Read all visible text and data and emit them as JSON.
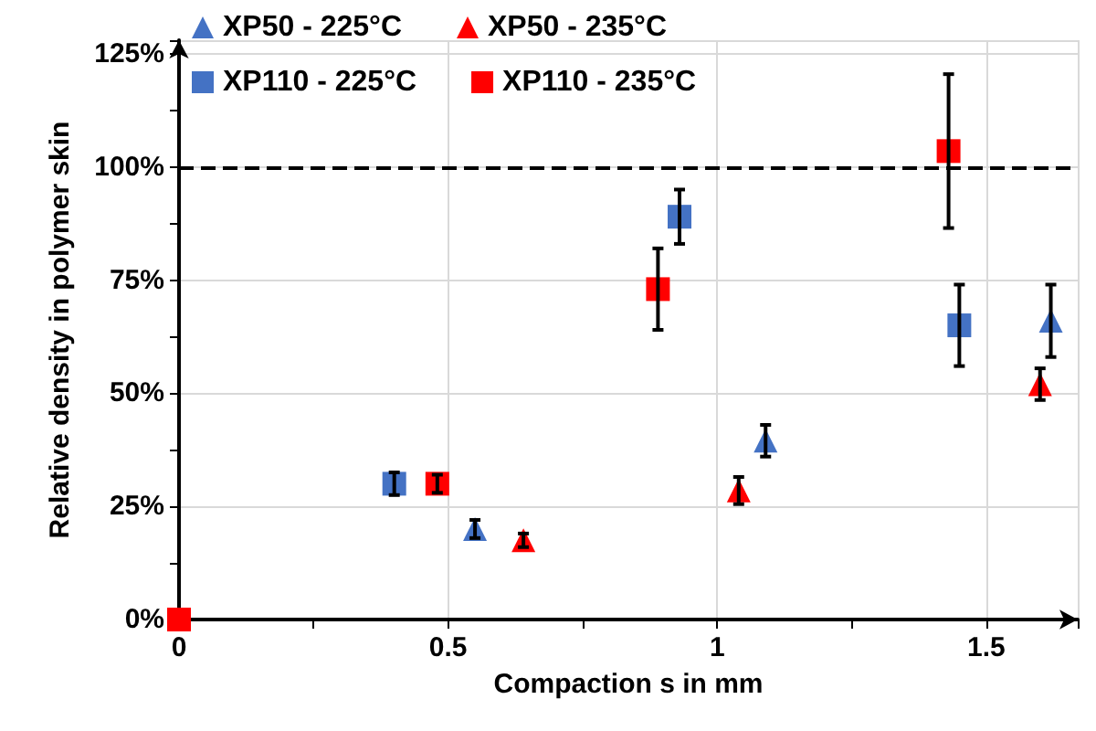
{
  "chart_data": {
    "type": "scatter",
    "xlabel": "Compaction s in mm",
    "ylabel": "Relative density in polymer skin",
    "xlim": [
      0,
      1.67
    ],
    "ylim": [
      0,
      128
    ],
    "xticks": [
      0,
      0.5,
      1,
      1.5
    ],
    "yticks": [
      {
        "value": 0,
        "label": "0%"
      },
      {
        "value": 25,
        "label": "25%"
      },
      {
        "value": 50,
        "label": "50%"
      },
      {
        "value": 75,
        "label": "75%"
      },
      {
        "value": 100,
        "label": "100%"
      },
      {
        "value": 125,
        "label": "125%"
      }
    ],
    "grid": true,
    "legend": "top left",
    "ref_lines": [
      {
        "axis": "y",
        "value": 100,
        "color": "#000000",
        "line_style": "dashed"
      }
    ],
    "series": [
      {
        "name": "XP50 - 225°C",
        "color": "#4472c4",
        "marker": "triangle",
        "x": [
          0.55,
          1.09,
          1.62
        ],
        "values": [
          20,
          39.5,
          66
        ],
        "errors": [
          2,
          3.5,
          8
        ]
      },
      {
        "name": "XP50 - 235°C",
        "color": "#ff0000",
        "marker": "triangle",
        "x": [
          0.64,
          1.04,
          1.6
        ],
        "values": [
          17.5,
          28.5,
          52
        ],
        "errors": [
          1.5,
          3,
          3.5
        ]
      },
      {
        "name": "XP110 - 225°C",
        "color": "#4472c4",
        "marker": "square",
        "x": [
          0.4,
          0.93,
          1.45
        ],
        "values": [
          30,
          89,
          65
        ],
        "errors": [
          2.5,
          6,
          9
        ]
      },
      {
        "name": "XP110 - 235°C",
        "color": "#ff0000",
        "marker": "square",
        "x": [
          0,
          0.48,
          0.89,
          1.43
        ],
        "values": [
          0,
          30,
          73,
          103.5
        ],
        "errors": [
          null,
          2,
          9,
          17
        ]
      }
    ]
  }
}
